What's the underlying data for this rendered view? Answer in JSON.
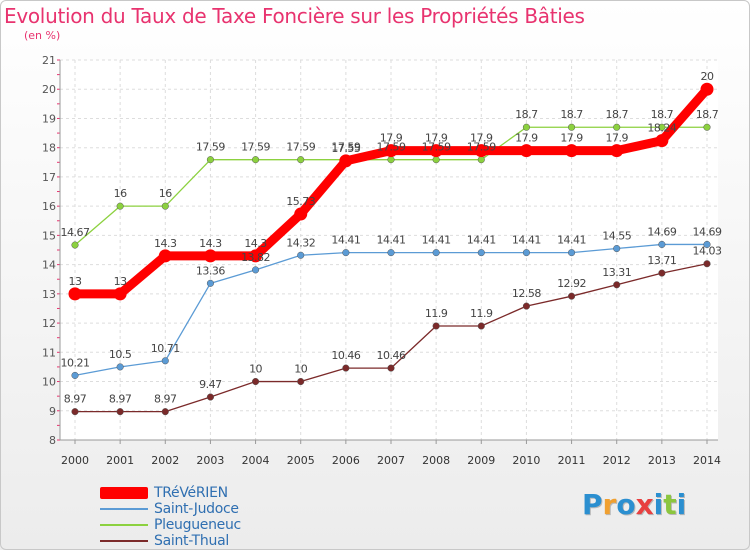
{
  "title": "Evolution du Taux de Taxe Foncière sur les Propriétés Bâties",
  "subtitle": "(en %)",
  "logo": {
    "text": "Proxiti",
    "colors": [
      "#2b8fd0",
      "#f0a030",
      "#2b8fd0",
      "#e84040",
      "#2b8fd0",
      "#8cc63f",
      "#2b8fd0"
    ]
  },
  "chart_data": {
    "type": "line",
    "title": "Evolution du Taux de Taxe Foncière sur les Propriétés Bâties",
    "ylabel": "(en %)",
    "xlabel": "",
    "x": [
      "2000",
      "2001",
      "2002",
      "2003",
      "2004",
      "2005",
      "2006",
      "2007",
      "2008",
      "2009",
      "2010",
      "2011",
      "2012",
      "2013",
      "2014"
    ],
    "ylim": [
      8,
      21
    ],
    "yticks": [
      8,
      9,
      10,
      11,
      12,
      13,
      14,
      15,
      16,
      17,
      18,
      19,
      20,
      21
    ],
    "grid": true,
    "legend_position": "bottom-left",
    "series": [
      {
        "name": "TRéVéRIEN",
        "color": "#ff0000",
        "values": [
          13,
          13,
          14.3,
          14.3,
          14.3,
          15.73,
          17.55,
          17.9,
          17.9,
          17.9,
          17.9,
          17.9,
          17.9,
          18.24,
          20
        ],
        "labels": [
          "13",
          "13",
          "14.3",
          "14.3",
          "14.3",
          "15.73",
          "17.55",
          "17.9",
          "17.9",
          "17.9",
          "17.9",
          "17.9",
          "17.9",
          "18.24",
          "20"
        ]
      },
      {
        "name": "Saint-Judoce",
        "color": "#5b9bd5",
        "values": [
          10.21,
          10.5,
          10.71,
          13.36,
          13.82,
          14.32,
          14.41,
          14.41,
          14.41,
          14.41,
          14.41,
          14.41,
          14.55,
          14.69,
          14.69
        ],
        "labels": [
          "10.21",
          "10.5",
          "10.71",
          "13.36",
          "13.82",
          "14.32",
          "14.41",
          "14.41",
          "14.41",
          "14.41",
          "14.41",
          "14.41",
          "14.55",
          "14.69",
          "14.69"
        ]
      },
      {
        "name": "Pleugueneuc",
        "color": "#8cd13f",
        "values": [
          14.67,
          16,
          16,
          17.59,
          17.59,
          17.59,
          17.59,
          17.59,
          17.59,
          17.59,
          18.7,
          18.7,
          18.7,
          18.7,
          18.7
        ],
        "labels": [
          "14.67",
          "16",
          "16",
          "17.59",
          "17.59",
          "17.59",
          "17.59",
          "17.59",
          "17.59",
          "17.59",
          "18.7",
          "18.7",
          "18.7",
          "18.7",
          "18.7"
        ]
      },
      {
        "name": "Saint-Thual",
        "color": "#7b2a2a",
        "values": [
          8.97,
          8.97,
          8.97,
          9.47,
          10,
          10,
          10.46,
          10.46,
          11.9,
          11.9,
          12.58,
          12.92,
          13.31,
          13.71,
          14.03
        ],
        "labels": [
          "8.97",
          "8.97",
          "8.97",
          "9.47",
          "10",
          "10",
          "10.46",
          "10.46",
          "11.9",
          "11.9",
          "12.58",
          "12.92",
          "13.31",
          "13.71",
          "14.03"
        ]
      }
    ]
  }
}
